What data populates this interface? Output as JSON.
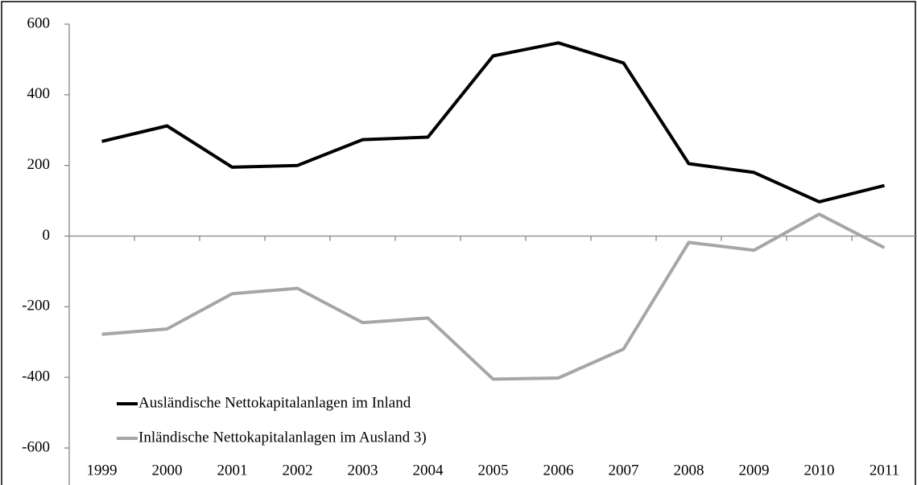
{
  "chart_data": {
    "type": "line",
    "categories": [
      "1999",
      "2000",
      "2001",
      "2002",
      "2003",
      "2004",
      "2005",
      "2006",
      "2007",
      "2008",
      "2009",
      "2010",
      "2011"
    ],
    "series": [
      {
        "name": "Ausländische Nettokapitalanlagen im Inland",
        "color": "#000000",
        "values": [
          268,
          312,
          195,
          200,
          273,
          280,
          510,
          547,
          490,
          205,
          180,
          97,
          143
        ]
      },
      {
        "name": "Inländische Nettokapitalanlagen im Ausland 3)",
        "color": "#a6a6a6",
        "values": [
          -278,
          -263,
          -163,
          -148,
          -245,
          -232,
          -405,
          -402,
          -320,
          -18,
          -40,
          62,
          -33
        ]
      }
    ],
    "ylim": [
      -600,
      600
    ],
    "yticks": [
      -600,
      -400,
      -200,
      0,
      200,
      400,
      600
    ],
    "grid": false,
    "legend": "lower-left"
  }
}
